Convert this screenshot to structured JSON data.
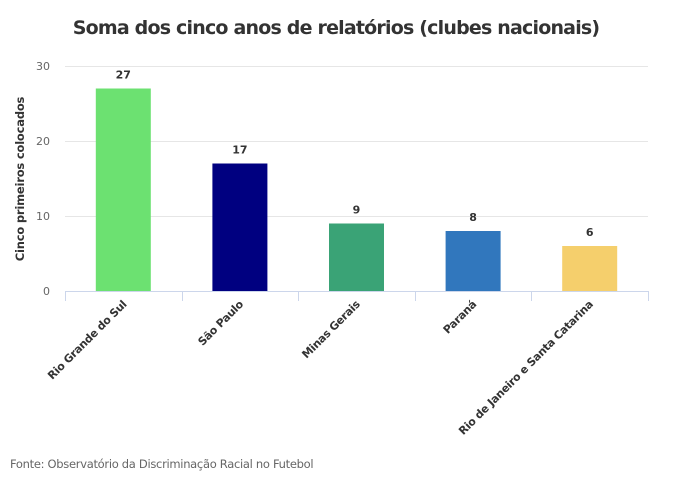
{
  "chart_data": {
    "type": "bar",
    "title": "Soma dos cinco anos de relatórios (clubes nacionais)",
    "xlabel": "",
    "ylabel": "Cinco primeiros colocados",
    "categories": [
      "Rio Grande do Sul",
      "São Paulo",
      "Minas Gerais",
      "Paraná",
      "Rio de Janeiro e Santa Catarina"
    ],
    "values": [
      27,
      17,
      9,
      8,
      6
    ],
    "colors": [
      "#6ce171",
      "#000080",
      "#3aa376",
      "#3177bd",
      "#f5cf6c"
    ],
    "ylim": [
      0,
      30
    ],
    "yticks": [
      0,
      10,
      20,
      30
    ],
    "grid": true,
    "legend": "none",
    "data_labels": true
  },
  "footer": {
    "source": "Fonte: Observatório da Discriminação Racial no Futebol"
  }
}
